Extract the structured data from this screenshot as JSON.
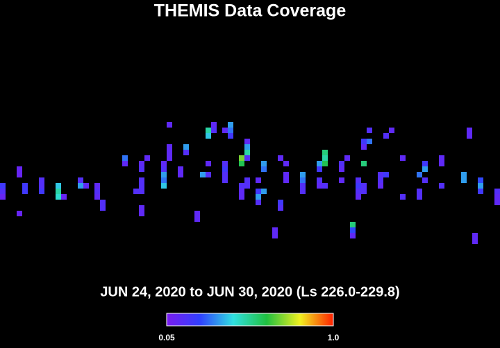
{
  "chart_data": {
    "type": "heatmap",
    "title": "THEMIS Data Coverage",
    "subtitle": "JUN 24, 2020 to JUN 30, 2020 (Ls 226.0-229.8)",
    "colormap": [
      "#7a1cf0",
      "#3040ff",
      "#30e0e0",
      "#20c040",
      "#f0f020",
      "#ff2000"
    ],
    "clim": [
      0.05,
      1
    ],
    "cticks": [
      0.05,
      {
        "value": 1,
        "label": "1.0"
      }
    ],
    "cells": [
      [
        0,
        33,
        0.2
      ],
      [
        0,
        34,
        0.15
      ],
      [
        0,
        35,
        0.1
      ],
      [
        3,
        30,
        0.1
      ],
      [
        3,
        31,
        0.1
      ],
      [
        3,
        38,
        0.1
      ],
      [
        4,
        33,
        0.2
      ],
      [
        4,
        34,
        0.2
      ],
      [
        7,
        32,
        0.15
      ],
      [
        7,
        33,
        0.15
      ],
      [
        7,
        34,
        0.2
      ],
      [
        10,
        33,
        0.4
      ],
      [
        10,
        34,
        0.5
      ],
      [
        10,
        35,
        0.45
      ],
      [
        11,
        35,
        0.1
      ],
      [
        14,
        32,
        0.15
      ],
      [
        14,
        33,
        0.35
      ],
      [
        15,
        33,
        0.12
      ],
      [
        17,
        33,
        0.12
      ],
      [
        17,
        34,
        0.15
      ],
      [
        17,
        35,
        0.12
      ],
      [
        18,
        36,
        0.15
      ],
      [
        18,
        37,
        0.15
      ],
      [
        22,
        28,
        0.3
      ],
      [
        22,
        29,
        0.12
      ],
      [
        24,
        34,
        0.15
      ],
      [
        25,
        29,
        0.12
      ],
      [
        25,
        30,
        0.15
      ],
      [
        25,
        32,
        0.15
      ],
      [
        25,
        33,
        0.15
      ],
      [
        25,
        34,
        0.15
      ],
      [
        25,
        37,
        0.12
      ],
      [
        25,
        38,
        0.12
      ],
      [
        26,
        28,
        0.12
      ],
      [
        29,
        29,
        0.12
      ],
      [
        29,
        30,
        0.15
      ],
      [
        29,
        31,
        0.35
      ],
      [
        29,
        32,
        0.3
      ],
      [
        29,
        33,
        0.4
      ],
      [
        30,
        22,
        0.12
      ],
      [
        30,
        26,
        0.12
      ],
      [
        30,
        27,
        0.12
      ],
      [
        30,
        28,
        0.12
      ],
      [
        32,
        30,
        0.12
      ],
      [
        32,
        31,
        0.12
      ],
      [
        33,
        26,
        0.35
      ],
      [
        33,
        27,
        0.15
      ],
      [
        35,
        38,
        0.12
      ],
      [
        35,
        39,
        0.12
      ],
      [
        36,
        31,
        0.35
      ],
      [
        37,
        23,
        0.5
      ],
      [
        37,
        24,
        0.4
      ],
      [
        37,
        29,
        0.12
      ],
      [
        37,
        31,
        0.15
      ],
      [
        38,
        22,
        0.12
      ],
      [
        38,
        23,
        0.15
      ],
      [
        40,
        23,
        0.12
      ],
      [
        40,
        29,
        0.15
      ],
      [
        40,
        30,
        0.2
      ],
      [
        40,
        31,
        0.15
      ],
      [
        40,
        32,
        0.15
      ],
      [
        41,
        22,
        0.35
      ],
      [
        41,
        23,
        0.3
      ],
      [
        41,
        24,
        0.2
      ],
      [
        43,
        28,
        0.7
      ],
      [
        43,
        29,
        0.6
      ],
      [
        43,
        33,
        0.15
      ],
      [
        43,
        34,
        0.12
      ],
      [
        43,
        35,
        0.12
      ],
      [
        44,
        25,
        0.12
      ],
      [
        44,
        26,
        0.35
      ],
      [
        44,
        27,
        0.5
      ],
      [
        44,
        28,
        0.15
      ],
      [
        44,
        32,
        0.15
      ],
      [
        44,
        33,
        0.15
      ],
      [
        46,
        32,
        0.12
      ],
      [
        46,
        34,
        0.2
      ],
      [
        46,
        35,
        0.35
      ],
      [
        46,
        36,
        0.15
      ],
      [
        47,
        29,
        0.35
      ],
      [
        47,
        30,
        0.3
      ],
      [
        47,
        34,
        0.35
      ],
      [
        49,
        41,
        0.12
      ],
      [
        49,
        42,
        0.12
      ],
      [
        50,
        28,
        0.12
      ],
      [
        50,
        36,
        0.2
      ],
      [
        50,
        37,
        0.15
      ],
      [
        51,
        29,
        0.12
      ],
      [
        51,
        31,
        0.12
      ],
      [
        51,
        32,
        0.12
      ],
      [
        54,
        31,
        0.35
      ],
      [
        54,
        32,
        0.3
      ],
      [
        54,
        33,
        0.15
      ],
      [
        54,
        34,
        0.15
      ],
      [
        57,
        29,
        0.35
      ],
      [
        57,
        30,
        0.2
      ],
      [
        57,
        32,
        0.15
      ],
      [
        57,
        33,
        0.12
      ],
      [
        58,
        27,
        0.55
      ],
      [
        58,
        28,
        0.5
      ],
      [
        58,
        29,
        0.6
      ],
      [
        58,
        33,
        0.15
      ],
      [
        61,
        29,
        0.15
      ],
      [
        61,
        30,
        0.12
      ],
      [
        61,
        32,
        0.12
      ],
      [
        62,
        28,
        0.12
      ],
      [
        63,
        40,
        0.55
      ],
      [
        63,
        41,
        0.25
      ],
      [
        63,
        42,
        0.12
      ],
      [
        64,
        32,
        0.15
      ],
      [
        64,
        33,
        0.2
      ],
      [
        64,
        34,
        0.15
      ],
      [
        64,
        35,
        0.12
      ],
      [
        65,
        25,
        0.2
      ],
      [
        65,
        26,
        0.12
      ],
      [
        65,
        29,
        0.55
      ],
      [
        65,
        33,
        0.15
      ],
      [
        65,
        34,
        0.15
      ],
      [
        66,
        23,
        0.15
      ],
      [
        66,
        25,
        0.3
      ],
      [
        68,
        31,
        0.15
      ],
      [
        68,
        32,
        0.15
      ],
      [
        68,
        33,
        0.12
      ],
      [
        69,
        24,
        0.15
      ],
      [
        69,
        31,
        0.2
      ],
      [
        70,
        23,
        0.12
      ],
      [
        72,
        28,
        0.12
      ],
      [
        72,
        35,
        0.15
      ],
      [
        75,
        31,
        0.3
      ],
      [
        75,
        34,
        0.15
      ],
      [
        75,
        35,
        0.15
      ],
      [
        76,
        29,
        0.2
      ],
      [
        76,
        30,
        0.35
      ],
      [
        76,
        32,
        0.15
      ],
      [
        79,
        28,
        0.12
      ],
      [
        79,
        29,
        0.12
      ],
      [
        79,
        33,
        0.15
      ],
      [
        83,
        31,
        0.35
      ],
      [
        83,
        32,
        0.35
      ],
      [
        84,
        23,
        0.12
      ],
      [
        84,
        24,
        0.12
      ],
      [
        85,
        42,
        0.12
      ],
      [
        85,
        43,
        0.12
      ],
      [
        86,
        32,
        0.25
      ],
      [
        86,
        33,
        0.35
      ],
      [
        86,
        34,
        0.2
      ],
      [
        89,
        34,
        0.15
      ],
      [
        89,
        35,
        0.12
      ],
      [
        89,
        36,
        0.12
      ]
    ]
  }
}
